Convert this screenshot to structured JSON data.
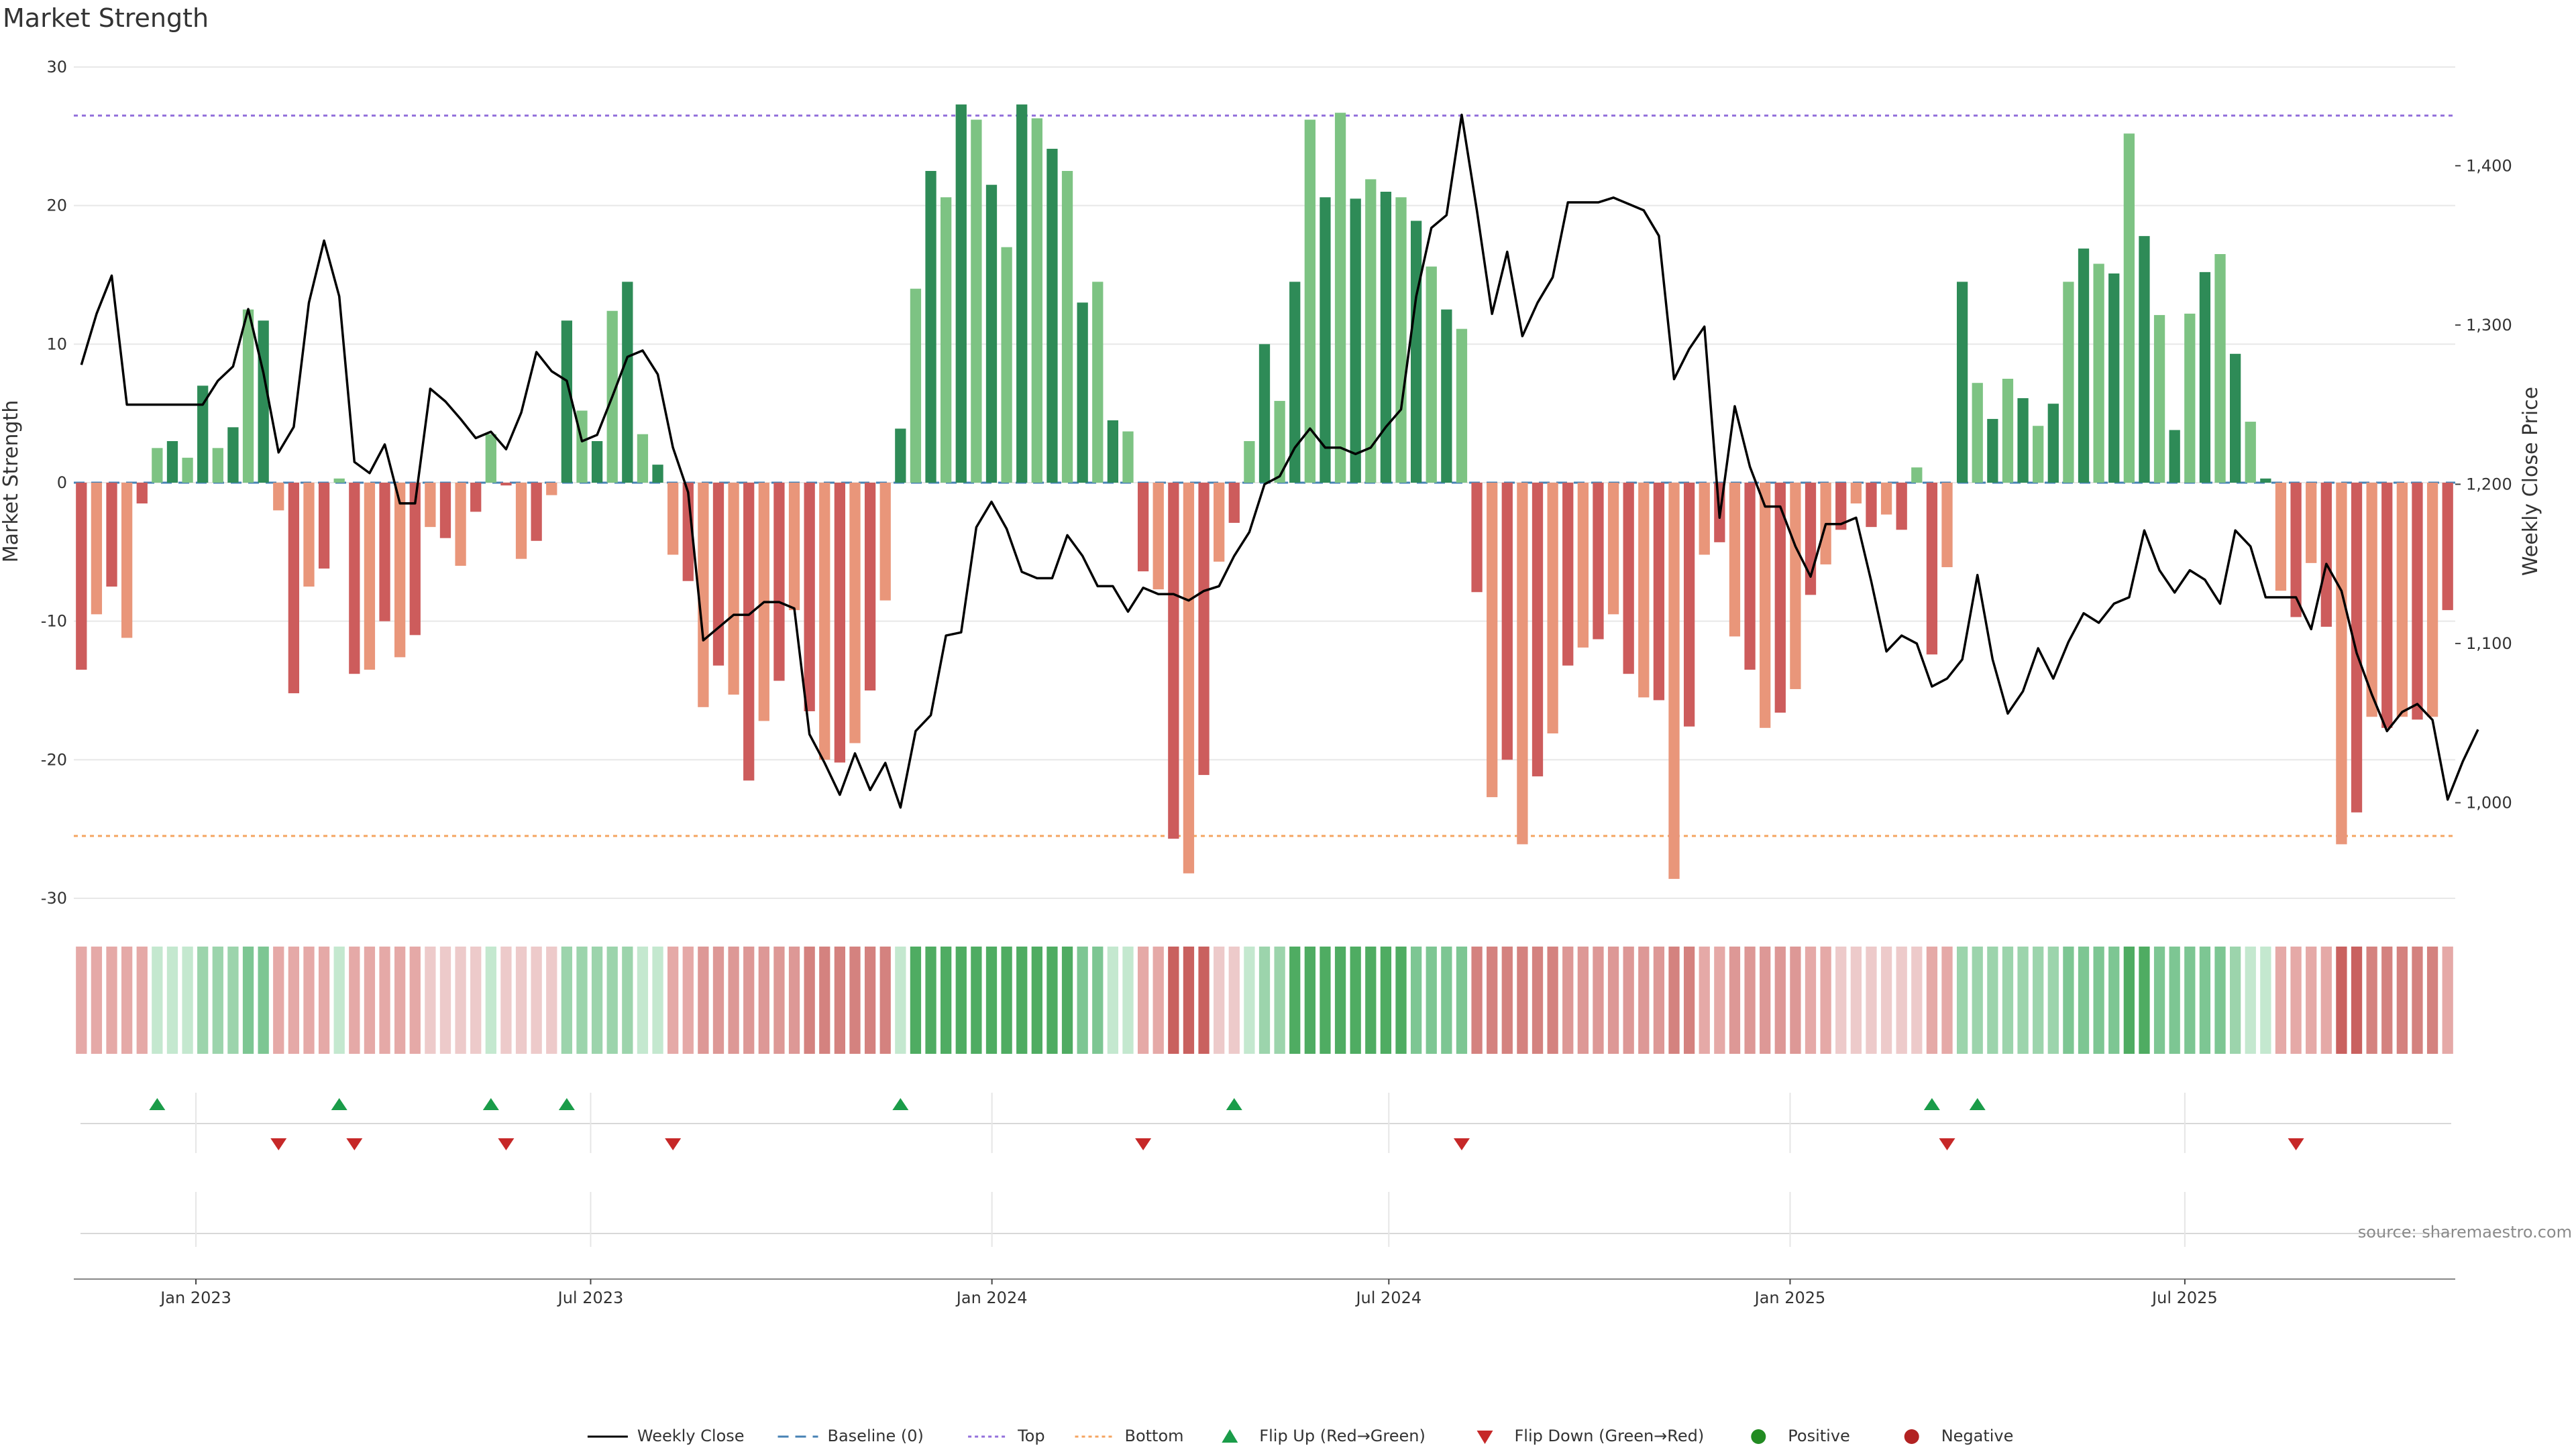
{
  "chart_data": {
    "type": "bar+line",
    "title": "Market Strength",
    "ylabel": "Market Strength",
    "y2label": "Weekly Close Price",
    "ylim": [
      -30,
      30
    ],
    "y2lim": [
      940,
      1462
    ],
    "yticks": [
      30,
      20,
      10,
      0,
      -10,
      -20,
      -30
    ],
    "y2ticks": [
      1400,
      1300,
      1200,
      1100,
      1000
    ],
    "y2tick_labels": [
      "1,400",
      "1,300",
      "1,200",
      "1,100",
      "1,000"
    ],
    "top_line": 26.5,
    "bottom_line": -25.5,
    "source": "source: sharemaestro.com",
    "x_start": "2022-11-06",
    "x_end": "2025-11-02",
    "xticks": [
      {
        "label": "Jan 2023",
        "date": "2023-01-01"
      },
      {
        "label": "Jul 2023",
        "date": "2023-07-01"
      },
      {
        "label": "Jan 2024",
        "date": "2024-01-01"
      },
      {
        "label": "Jul 2024",
        "date": "2024-07-01"
      },
      {
        "label": "Jan 2025",
        "date": "2025-01-01"
      },
      {
        "label": "Jul 2025",
        "date": "2025-07-01"
      }
    ],
    "strength": [
      -13.5,
      -9.5,
      -7.5,
      -11.2,
      -1.5,
      2.5,
      3,
      1.8,
      7,
      2.5,
      4,
      12.5,
      11.7,
      -2,
      -15.2,
      -7.5,
      -6.2,
      0.3,
      -13.8,
      -13.5,
      -10,
      -12.6,
      -11,
      -3.2,
      -4,
      -6,
      -2.1,
      3.5,
      -0.2,
      -5.5,
      -4.2,
      -0.9,
      11.7,
      5.2,
      3,
      12.4,
      14.5,
      3.5,
      1.3,
      -5.2,
      -7.1,
      -16.2,
      -13.2,
      -15.3,
      -21.5,
      -17.2,
      -14.3,
      -9.2,
      -16.5,
      -20,
      -20.2,
      -18.8,
      -15,
      -8.5,
      3.9,
      14,
      22.5,
      20.6,
      27.3,
      26.2,
      21.5,
      17,
      27.3,
      26.3,
      24.1,
      22.5,
      13,
      14.5,
      4.5,
      3.7,
      -6.4,
      -7.7,
      -25.7,
      -28.2,
      -21.1,
      -5.7,
      -2.9,
      3,
      10,
      5.9,
      14.5,
      26.2,
      20.6,
      26.7,
      20.5,
      21.9,
      21,
      20.6,
      18.9,
      15.6,
      12.5,
      11.1,
      -7.9,
      -22.7,
      -20,
      -26.1,
      -21.2,
      -18.1,
      -13.2,
      -11.9,
      -11.3,
      -9.5,
      -13.8,
      -15.5,
      -15.7,
      -28.6,
      -17.6,
      -5.2,
      -4.3,
      -11.1,
      -13.5,
      -17.7,
      -16.6,
      -14.9,
      -8.1,
      -5.9,
      -3.4,
      -1.5,
      -3.2,
      -2.3,
      -3.4,
      1.1,
      -12.4,
      -6.1,
      14.5,
      7.2,
      4.6,
      7.5,
      6.1,
      4.1,
      5.7,
      14.5,
      16.9,
      15.8,
      15.1,
      25.2,
      17.8,
      12.1,
      3.8,
      12.2,
      15.2,
      16.5,
      9.3,
      4.4,
      0.3,
      -7.8,
      -9.7,
      -5.8,
      -10.4,
      -26.1,
      -23.8,
      -16.9,
      -17.7,
      -16.9,
      -17.1,
      -16.9,
      -9.2
    ],
    "weekly_close": [
      [
        0,
        1275
      ],
      [
        1,
        1307
      ],
      [
        2,
        1331
      ],
      [
        3,
        1250
      ],
      [
        4,
        1250
      ],
      [
        5,
        1250
      ],
      [
        6,
        1250
      ],
      [
        7,
        1250
      ],
      [
        8,
        1250
      ],
      [
        9,
        1265
      ],
      [
        10,
        1274
      ],
      [
        11,
        1310
      ],
      [
        12,
        1270
      ],
      [
        13,
        1220
      ],
      [
        14,
        1236
      ],
      [
        15,
        1314
      ],
      [
        16,
        1353
      ],
      [
        17,
        1318
      ],
      [
        18,
        1214
      ],
      [
        19,
        1207
      ],
      [
        20,
        1225
      ],
      [
        21,
        1188
      ],
      [
        22,
        1188
      ],
      [
        23,
        1260
      ],
      [
        24,
        1252
      ],
      [
        25,
        1241
      ],
      [
        26,
        1229
      ],
      [
        27,
        1233
      ],
      [
        28,
        1222
      ],
      [
        29,
        1245
      ],
      [
        30,
        1283
      ],
      [
        31,
        1271
      ],
      [
        32,
        1265
      ],
      [
        33,
        1227
      ],
      [
        34,
        1231
      ],
      [
        35,
        1255
      ],
      [
        36,
        1280
      ],
      [
        37,
        1284
      ],
      [
        38,
        1269
      ],
      [
        39,
        1223
      ],
      [
        40,
        1195
      ],
      [
        41,
        1102
      ],
      [
        42,
        1110
      ],
      [
        43,
        1118
      ],
      [
        44,
        1118
      ],
      [
        45,
        1126
      ],
      [
        46,
        1126
      ],
      [
        47,
        1122
      ],
      [
        48,
        1043
      ],
      [
        49,
        1025
      ],
      [
        50,
        1005
      ],
      [
        51,
        1031
      ],
      [
        52,
        1008
      ],
      [
        53,
        1025
      ],
      [
        54,
        997
      ],
      [
        55,
        1045
      ],
      [
        56,
        1055
      ],
      [
        57,
        1105
      ],
      [
        58,
        1107
      ],
      [
        59,
        1173
      ],
      [
        60,
        1189
      ],
      [
        61,
        1172
      ],
      [
        62,
        1145
      ],
      [
        63,
        1141
      ],
      [
        64,
        1141
      ],
      [
        65,
        1168
      ],
      [
        66,
        1155
      ],
      [
        67,
        1136
      ],
      [
        68,
        1136
      ],
      [
        69,
        1120
      ],
      [
        70,
        1135
      ],
      [
        71,
        1131
      ],
      [
        72,
        1131
      ],
      [
        73,
        1127
      ],
      [
        74,
        1133
      ],
      [
        75,
        1136
      ],
      [
        76,
        1155
      ],
      [
        77,
        1170
      ],
      [
        78,
        1200
      ],
      [
        79,
        1205
      ],
      [
        80,
        1223
      ],
      [
        81,
        1235
      ],
      [
        82,
        1223
      ],
      [
        83,
        1223
      ],
      [
        84,
        1219
      ],
      [
        85,
        1223
      ],
      [
        86,
        1236
      ],
      [
        87,
        1247
      ],
      [
        88,
        1318
      ],
      [
        89,
        1361
      ],
      [
        90,
        1369
      ],
      [
        91,
        1432
      ],
      [
        92,
        1372
      ],
      [
        93,
        1307
      ],
      [
        94,
        1346
      ],
      [
        95,
        1293
      ],
      [
        96,
        1314
      ],
      [
        97,
        1330
      ],
      [
        98,
        1377
      ],
      [
        99,
        1377
      ],
      [
        100,
        1377
      ],
      [
        101,
        1380
      ],
      [
        102,
        1376
      ],
      [
        103,
        1372
      ],
      [
        104,
        1356
      ],
      [
        105,
        1266
      ],
      [
        106,
        1285
      ],
      [
        107,
        1299
      ],
      [
        108,
        1179
      ],
      [
        109,
        1249
      ],
      [
        110,
        1211
      ],
      [
        111,
        1186
      ],
      [
        112,
        1186
      ],
      [
        113,
        1161
      ],
      [
        114,
        1142
      ],
      [
        115,
        1175
      ],
      [
        116,
        1175
      ],
      [
        117,
        1179
      ],
      [
        118,
        1139
      ],
      [
        119,
        1095
      ],
      [
        120,
        1105
      ],
      [
        121,
        1100
      ],
      [
        122,
        1073
      ],
      [
        123,
        1078
      ],
      [
        124,
        1090
      ],
      [
        125,
        1143
      ],
      [
        126,
        1090
      ],
      [
        127,
        1056
      ],
      [
        128,
        1070
      ],
      [
        129,
        1097
      ],
      [
        130,
        1078
      ],
      [
        131,
        1101
      ],
      [
        132,
        1119
      ],
      [
        133,
        1113
      ],
      [
        134,
        1125
      ],
      [
        135,
        1129
      ],
      [
        136,
        1171
      ],
      [
        137,
        1146
      ],
      [
        138,
        1132
      ],
      [
        139,
        1146
      ],
      [
        140,
        1140
      ],
      [
        141,
        1125
      ],
      [
        142,
        1171
      ],
      [
        143,
        1161
      ],
      [
        144,
        1129
      ],
      [
        145,
        1129
      ],
      [
        146,
        1129
      ],
      [
        147,
        1109
      ],
      [
        148,
        1150
      ],
      [
        149,
        1133
      ],
      [
        150,
        1094
      ],
      [
        151,
        1068
      ],
      [
        152,
        1045
      ],
      [
        153,
        1057
      ],
      [
        154,
        1062
      ],
      [
        155,
        1052
      ],
      [
        156,
        1002
      ],
      [
        157,
        1026
      ],
      [
        158,
        1046
      ]
    ],
    "heat_colors": [
      "#e5a9a7",
      "#e5a9a7",
      "#e5a9a7",
      "#e5a9a7",
      "#e5a9a7",
      "#c4e8cf",
      "#c4e8cf",
      "#c4e8cf",
      "#9cd4ac",
      "#9cd4ac",
      "#9cd4ac",
      "#7dc693",
      "#7dc693",
      "#e5a9a7",
      "#e5a9a7",
      "#e5a9a7",
      "#e5a9a7",
      "#c4e8cf",
      "#e5a9a7",
      "#e5a9a7",
      "#e5a9a7",
      "#e5a9a7",
      "#e5a9a7",
      "#edcaca",
      "#edcaca",
      "#edcaca",
      "#edcaca",
      "#c4e8cf",
      "#edcaca",
      "#edcaca",
      "#edcaca",
      "#edcaca",
      "#9cd4ac",
      "#9cd4ac",
      "#9cd4ac",
      "#9cd4ac",
      "#9cd4ac",
      "#c4e8cf",
      "#c4e8cf",
      "#e5a9a7",
      "#e5a9a7",
      "#dd9896",
      "#dd9896",
      "#dd9896",
      "#dd9896",
      "#dd9896",
      "#dd9896",
      "#dd9896",
      "#d4827f",
      "#d4827f",
      "#d4827f",
      "#d4827f",
      "#d4827f",
      "#d4827f",
      "#c4e8cf",
      "#4fac62",
      "#4fac62",
      "#4fac62",
      "#4fac62",
      "#4fac62",
      "#4fac62",
      "#4fac62",
      "#4fac62",
      "#4fac62",
      "#4fac62",
      "#4fac62",
      "#7dc693",
      "#7dc693",
      "#c4e8cf",
      "#c4e8cf",
      "#e5a9a7",
      "#e5a9a7",
      "#c9615f",
      "#c9615f",
      "#c9615f",
      "#edcaca",
      "#edcaca",
      "#c4e8cf",
      "#9cd4ac",
      "#9cd4ac",
      "#4fac62",
      "#4fac62",
      "#4fac62",
      "#4fac62",
      "#4fac62",
      "#4fac62",
      "#4fac62",
      "#4fac62",
      "#7dc693",
      "#7dc693",
      "#7dc693",
      "#7dc693",
      "#d4827f",
      "#d4827f",
      "#d4827f",
      "#d4827f",
      "#d4827f",
      "#d4827f",
      "#dd9896",
      "#dd9896",
      "#dd9896",
      "#dd9896",
      "#dd9896",
      "#dd9896",
      "#dd9896",
      "#d4827f",
      "#d4827f",
      "#e5a9a7",
      "#e5a9a7",
      "#dd9896",
      "#dd9896",
      "#dd9896",
      "#dd9896",
      "#dd9896",
      "#e5a9a7",
      "#e5a9a7",
      "#edcaca",
      "#edcaca",
      "#edcaca",
      "#edcaca",
      "#edcaca",
      "#edcaca",
      "#e5a9a7",
      "#e5a9a7",
      "#9cd4ac",
      "#9cd4ac",
      "#9cd4ac",
      "#9cd4ac",
      "#9cd4ac",
      "#9cd4ac",
      "#9cd4ac",
      "#7dc693",
      "#7dc693",
      "#7dc693",
      "#7dc693",
      "#4fac62",
      "#4fac62",
      "#7dc693",
      "#7dc693",
      "#7dc693",
      "#7dc693",
      "#7dc693",
      "#9cd4ac",
      "#c4e8cf",
      "#c4e8cf",
      "#e5a9a7",
      "#e5a9a7",
      "#e5a9a7",
      "#e5a9a7",
      "#c9615f",
      "#c9615f",
      "#d4827f",
      "#d4827f",
      "#d4827f",
      "#d4827f",
      "#d4827f",
      "#e5a9a7"
    ],
    "flip_up": [
      5,
      17,
      27,
      32,
      54,
      76,
      122,
      125
    ],
    "flip_down": [
      13,
      18,
      28,
      39,
      70,
      91,
      123,
      146
    ],
    "colors": {
      "pos_dark": "#2e8b57",
      "pos_light": "#7dc383",
      "neg_dark": "#cd5c5c",
      "neg_light": "#e9967a",
      "line": "#000000",
      "baseline": "#4682b4",
      "top": "#9370db",
      "bottom": "#f4a460",
      "flip_up": "#1a9c49",
      "flip_down": "#c62828",
      "positive": "#228b22",
      "negative": "#b22222",
      "grid": "#e8e8e8"
    },
    "legend": [
      {
        "label": "Weekly Close",
        "marker": "solid-line"
      },
      {
        "label": "Baseline (0)",
        "marker": "dash-line"
      },
      {
        "label": "Top",
        "marker": "dot-line"
      },
      {
        "label": "Bottom",
        "marker": "dot-line-orange"
      },
      {
        "label": "Flip Up (Red→Green)",
        "marker": "triangle-up"
      },
      {
        "label": "Flip Down (Green→Red)",
        "marker": "triangle-down"
      },
      {
        "label": "Positive",
        "marker": "dot-green"
      },
      {
        "label": "Negative",
        "marker": "dot-red"
      }
    ]
  }
}
